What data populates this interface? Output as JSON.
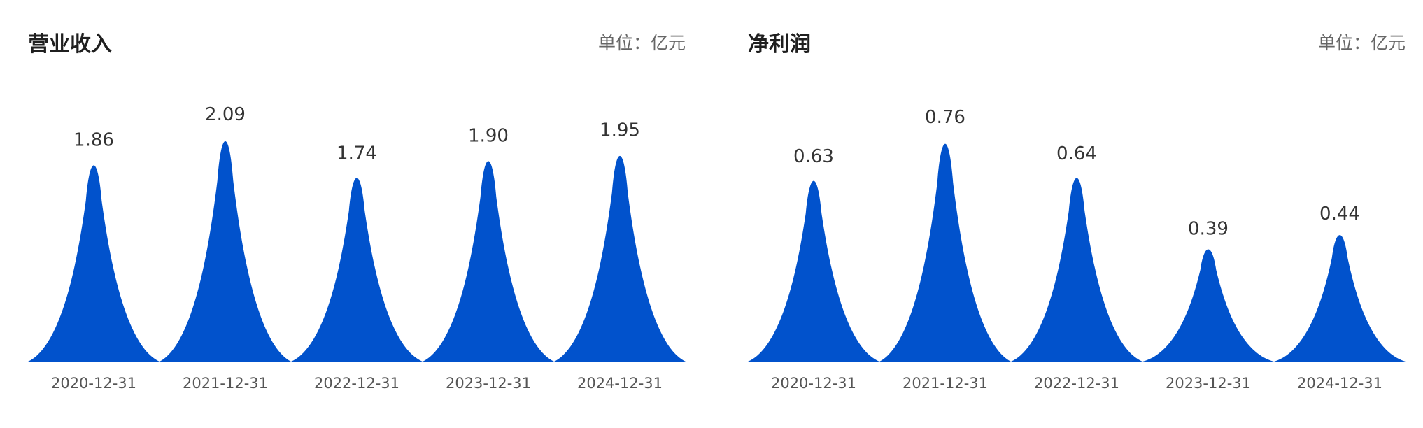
{
  "chart_data": [
    {
      "type": "area",
      "title": "营业收入",
      "unit_label": "单位：亿元",
      "categories": [
        "2020-12-31",
        "2021-12-31",
        "2022-12-31",
        "2023-12-31",
        "2024-12-31"
      ],
      "values": [
        1.86,
        2.09,
        1.74,
        1.9,
        1.95
      ],
      "value_labels": [
        "1.86",
        "2.09",
        "1.74",
        "1.90",
        "1.95"
      ],
      "ylim": [
        0,
        2.5
      ],
      "grid": false,
      "color": "#0152cc"
    },
    {
      "type": "area",
      "title": "净利润",
      "unit_label": "单位：亿元",
      "categories": [
        "2020-12-31",
        "2021-12-31",
        "2022-12-31",
        "2023-12-31",
        "2024-12-31"
      ],
      "values": [
        0.63,
        0.76,
        0.64,
        0.39,
        0.44
      ],
      "value_labels": [
        "0.63",
        "0.76",
        "0.64",
        "0.39",
        "0.44"
      ],
      "ylim": [
        0,
        0.92
      ],
      "grid": false,
      "color": "#0152cc"
    }
  ]
}
